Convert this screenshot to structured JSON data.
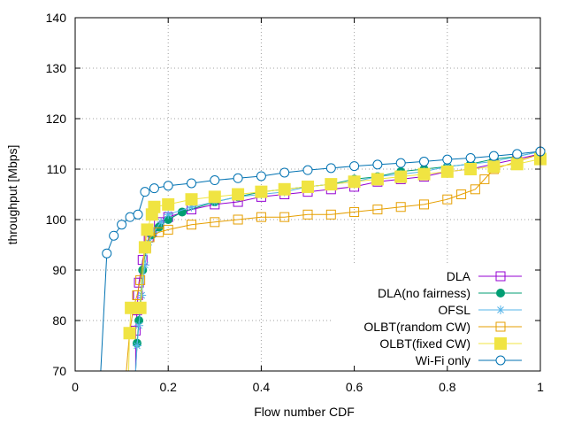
{
  "chart_data": {
    "type": "line",
    "xlabel": "Flow number CDF",
    "ylabel": "throughput [Mbps]",
    "xlim": [
      0,
      1
    ],
    "ylim": [
      70,
      140
    ],
    "xticks": [
      "0",
      "0.2",
      "0.4",
      "0.6",
      "0.8",
      "1"
    ],
    "yticks": [
      "70",
      "80",
      "90",
      "100",
      "110",
      "120",
      "130",
      "140"
    ],
    "grid": true,
    "legend_position": "bottom-right",
    "series": [
      {
        "name": "DLA",
        "color": "#9400d3",
        "marker": "open-square",
        "points": [
          [
            0.13,
            70
          ],
          [
            0.13,
            78
          ],
          [
            0.133,
            82
          ],
          [
            0.135,
            85
          ],
          [
            0.137,
            87.5
          ],
          [
            0.145,
            92
          ],
          [
            0.153,
            94.5
          ],
          [
            0.158,
            96.5
          ],
          [
            0.165,
            97.5
          ],
          [
            0.18,
            99.5
          ],
          [
            0.2,
            100.5
          ],
          [
            0.25,
            102
          ],
          [
            0.3,
            103
          ],
          [
            0.35,
            103.5
          ],
          [
            0.4,
            104.5
          ],
          [
            0.45,
            105
          ],
          [
            0.5,
            105.5
          ],
          [
            0.55,
            106
          ],
          [
            0.6,
            106.5
          ],
          [
            0.65,
            107.5
          ],
          [
            0.7,
            108
          ],
          [
            0.75,
            108.5
          ],
          [
            0.8,
            109.5
          ],
          [
            0.85,
            110
          ],
          [
            0.9,
            111
          ],
          [
            0.95,
            112
          ],
          [
            1.0,
            113
          ]
        ]
      },
      {
        "name": "DLA(no fairness)",
        "color": "#009e73",
        "marker": "filled-circle",
        "points": [
          [
            0.13,
            70
          ],
          [
            0.133,
            75.5
          ],
          [
            0.137,
            80
          ],
          [
            0.145,
            90
          ],
          [
            0.153,
            94.5
          ],
          [
            0.165,
            97
          ],
          [
            0.18,
            98.5
          ],
          [
            0.2,
            100
          ],
          [
            0.23,
            101.5
          ],
          [
            0.3,
            103.5
          ],
          [
            0.35,
            104.5
          ],
          [
            0.4,
            105.5
          ],
          [
            0.45,
            106
          ],
          [
            0.5,
            106.5
          ],
          [
            0.55,
            107
          ],
          [
            0.6,
            108
          ],
          [
            0.65,
            108.5
          ],
          [
            0.7,
            109.5
          ],
          [
            0.75,
            110
          ],
          [
            0.8,
            110.5
          ],
          [
            0.85,
            111
          ],
          [
            0.9,
            112
          ],
          [
            0.95,
            112.5
          ],
          [
            1.0,
            113.5
          ]
        ]
      },
      {
        "name": "OFSL",
        "color": "#56b4e9",
        "marker": "asterisk",
        "points": [
          [
            0.13,
            70
          ],
          [
            0.133,
            75
          ],
          [
            0.137,
            79
          ],
          [
            0.143,
            85
          ],
          [
            0.15,
            91
          ],
          [
            0.158,
            95.5
          ],
          [
            0.168,
            97.5
          ],
          [
            0.185,
            99.5
          ],
          [
            0.2,
            101
          ],
          [
            0.25,
            102.5
          ],
          [
            0.3,
            103.5
          ],
          [
            0.35,
            104.5
          ],
          [
            0.4,
            105
          ],
          [
            0.45,
            105.5
          ],
          [
            0.5,
            106.5
          ],
          [
            0.55,
            107
          ],
          [
            0.6,
            107.5
          ],
          [
            0.65,
            108.5
          ],
          [
            0.7,
            109
          ],
          [
            0.75,
            109.5
          ],
          [
            0.8,
            110.5
          ],
          [
            0.85,
            111
          ],
          [
            0.9,
            111.5
          ],
          [
            0.95,
            112.5
          ],
          [
            1.0,
            113.5
          ]
        ]
      },
      {
        "name": "OLBT(random CW)",
        "color": "#e69f00",
        "marker": "open-square",
        "points": [
          [
            0.11,
            70
          ],
          [
            0.117,
            77.5
          ],
          [
            0.125,
            82.5
          ],
          [
            0.133,
            85
          ],
          [
            0.14,
            88
          ],
          [
            0.15,
            94.5
          ],
          [
            0.16,
            96.5
          ],
          [
            0.18,
            97.5
          ],
          [
            0.2,
            98
          ],
          [
            0.25,
            99
          ],
          [
            0.3,
            99.5
          ],
          [
            0.35,
            100
          ],
          [
            0.4,
            100.5
          ],
          [
            0.45,
            100.5
          ],
          [
            0.5,
            101
          ],
          [
            0.55,
            101
          ],
          [
            0.6,
            101.5
          ],
          [
            0.65,
            102
          ],
          [
            0.7,
            102.5
          ],
          [
            0.75,
            103
          ],
          [
            0.8,
            104
          ],
          [
            0.83,
            105
          ],
          [
            0.86,
            106
          ],
          [
            0.88,
            108
          ],
          [
            0.9,
            110
          ],
          [
            0.95,
            111.5
          ],
          [
            1.0,
            113
          ]
        ]
      },
      {
        "name": "OLBT(fixed CW)",
        "color": "#f0e442",
        "marker": "filled-square",
        "points": [
          [
            0.115,
            70
          ],
          [
            0.117,
            77.5
          ],
          [
            0.12,
            82.5
          ],
          [
            0.14,
            82.5
          ],
          [
            0.15,
            94.5
          ],
          [
            0.155,
            98
          ],
          [
            0.165,
            101
          ],
          [
            0.17,
            102.5
          ],
          [
            0.2,
            103
          ],
          [
            0.25,
            104
          ],
          [
            0.3,
            104.5
          ],
          [
            0.35,
            105
          ],
          [
            0.4,
            105.5
          ],
          [
            0.45,
            106
          ],
          [
            0.5,
            106.5
          ],
          [
            0.55,
            107
          ],
          [
            0.6,
            107.5
          ],
          [
            0.65,
            108
          ],
          [
            0.7,
            108.5
          ],
          [
            0.75,
            109
          ],
          [
            0.8,
            109.5
          ],
          [
            0.85,
            110
          ],
          [
            0.9,
            110.5
          ],
          [
            0.95,
            111
          ],
          [
            1.0,
            112
          ]
        ]
      },
      {
        "name": "Wi-Fi only",
        "color": "#0072b2",
        "marker": "open-circle",
        "points": [
          [
            0.055,
            70
          ],
          [
            0.068,
            93.3
          ],
          [
            0.083,
            96.8
          ],
          [
            0.1,
            99
          ],
          [
            0.118,
            100.5
          ],
          [
            0.135,
            101
          ],
          [
            0.15,
            105.5
          ],
          [
            0.17,
            106.2
          ],
          [
            0.2,
            106.7
          ],
          [
            0.25,
            107.2
          ],
          [
            0.3,
            107.8
          ],
          [
            0.35,
            108.2
          ],
          [
            0.4,
            108.6
          ],
          [
            0.45,
            109.3
          ],
          [
            0.5,
            109.8
          ],
          [
            0.55,
            110.2
          ],
          [
            0.6,
            110.6
          ],
          [
            0.65,
            110.9
          ],
          [
            0.7,
            111.2
          ],
          [
            0.75,
            111.5
          ],
          [
            0.8,
            111.9
          ],
          [
            0.85,
            112.2
          ],
          [
            0.9,
            112.6
          ],
          [
            0.95,
            113
          ],
          [
            1.0,
            113.5
          ]
        ]
      }
    ]
  }
}
